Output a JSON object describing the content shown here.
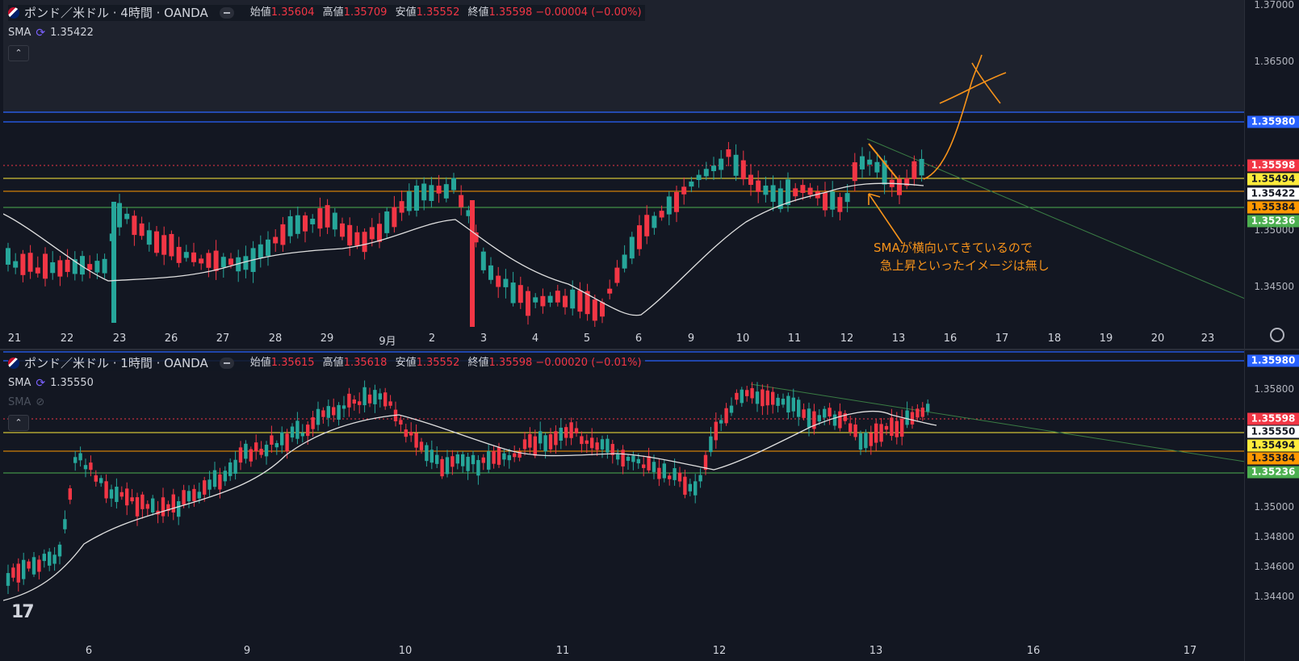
{
  "pane1": {
    "symbol": "ポンド／米ドル · 4時間 · OANDA",
    "ohlc": {
      "o_label": "始値",
      "o": "1.35604",
      "h_label": "高値",
      "h": "1.35709",
      "l_label": "安値",
      "l": "1.35552",
      "c_label": "終値",
      "c": "1.35598",
      "change": "−0.00004 (−0.00%)"
    },
    "sma_label": "SMA",
    "sma_value": "1.35422",
    "price_axis": [
      "1.37000",
      "1.36500",
      "1.35000",
      "1.34500"
    ],
    "x_labels": [
      "21",
      "22",
      "23",
      "26",
      "27",
      "28",
      "29",
      "9月",
      "2",
      "3",
      "4",
      "5",
      "6",
      "9",
      "10",
      "11",
      "12",
      "13",
      "16",
      "17",
      "18",
      "19",
      "20",
      "23"
    ],
    "tags": [
      {
        "label": "1.35980",
        "bg": "#2962ff",
        "fg": "#ffffff"
      },
      {
        "label": "1.35598",
        "bg": "#f23645",
        "fg": "#ffffff"
      },
      {
        "label": "1.35494",
        "bg": "#ffeb3b",
        "fg": "#131722"
      },
      {
        "label": "1.35422",
        "bg": "#ffffff",
        "fg": "#131722"
      },
      {
        "label": "1.35384",
        "bg": "#ff9800",
        "fg": "#131722"
      },
      {
        "label": "1.35236",
        "bg": "#4caf50",
        "fg": "#ffffff"
      }
    ],
    "annotation_line1": "SMAが横向いてきているので",
    "annotation_line2": "急上昇といったイメージは無し"
  },
  "pane2": {
    "symbol": "ポンド／米ドル · 1時間 · OANDA",
    "ohlc": {
      "o_label": "始値",
      "o": "1.35615",
      "h_label": "高値",
      "h": "1.35618",
      "l_label": "安値",
      "l": "1.35552",
      "c_label": "終値",
      "c": "1.35598",
      "change": "−0.00020 (−0.01%)"
    },
    "sma_label": "SMA",
    "sma_value": "1.35550",
    "sma2_label": "SMA",
    "price_axis": [
      "1.35800",
      "1.35000",
      "1.34800",
      "1.34600",
      "1.34400"
    ],
    "x_labels": [
      "6",
      "9",
      "10",
      "11",
      "12",
      "13",
      "16",
      "17"
    ],
    "tags": [
      {
        "label": "1.35980",
        "bg": "#2962ff",
        "fg": "#ffffff"
      },
      {
        "label": "1.35598",
        "bg": "#f23645",
        "fg": "#ffffff"
      },
      {
        "label": "1.35550",
        "bg": "#ffffff",
        "fg": "#131722"
      },
      {
        "label": "1.35494",
        "bg": "#ffeb3b",
        "fg": "#131722"
      },
      {
        "label": "1.35384",
        "bg": "#ff9800",
        "fg": "#131722"
      },
      {
        "label": "1.35236",
        "bg": "#4caf50",
        "fg": "#ffffff"
      }
    ]
  },
  "colors": {
    "up": "#26a69a",
    "down": "#f23645",
    "sma": "#e0e0e0",
    "annotation": "#f7931a",
    "background": "#131722"
  }
}
